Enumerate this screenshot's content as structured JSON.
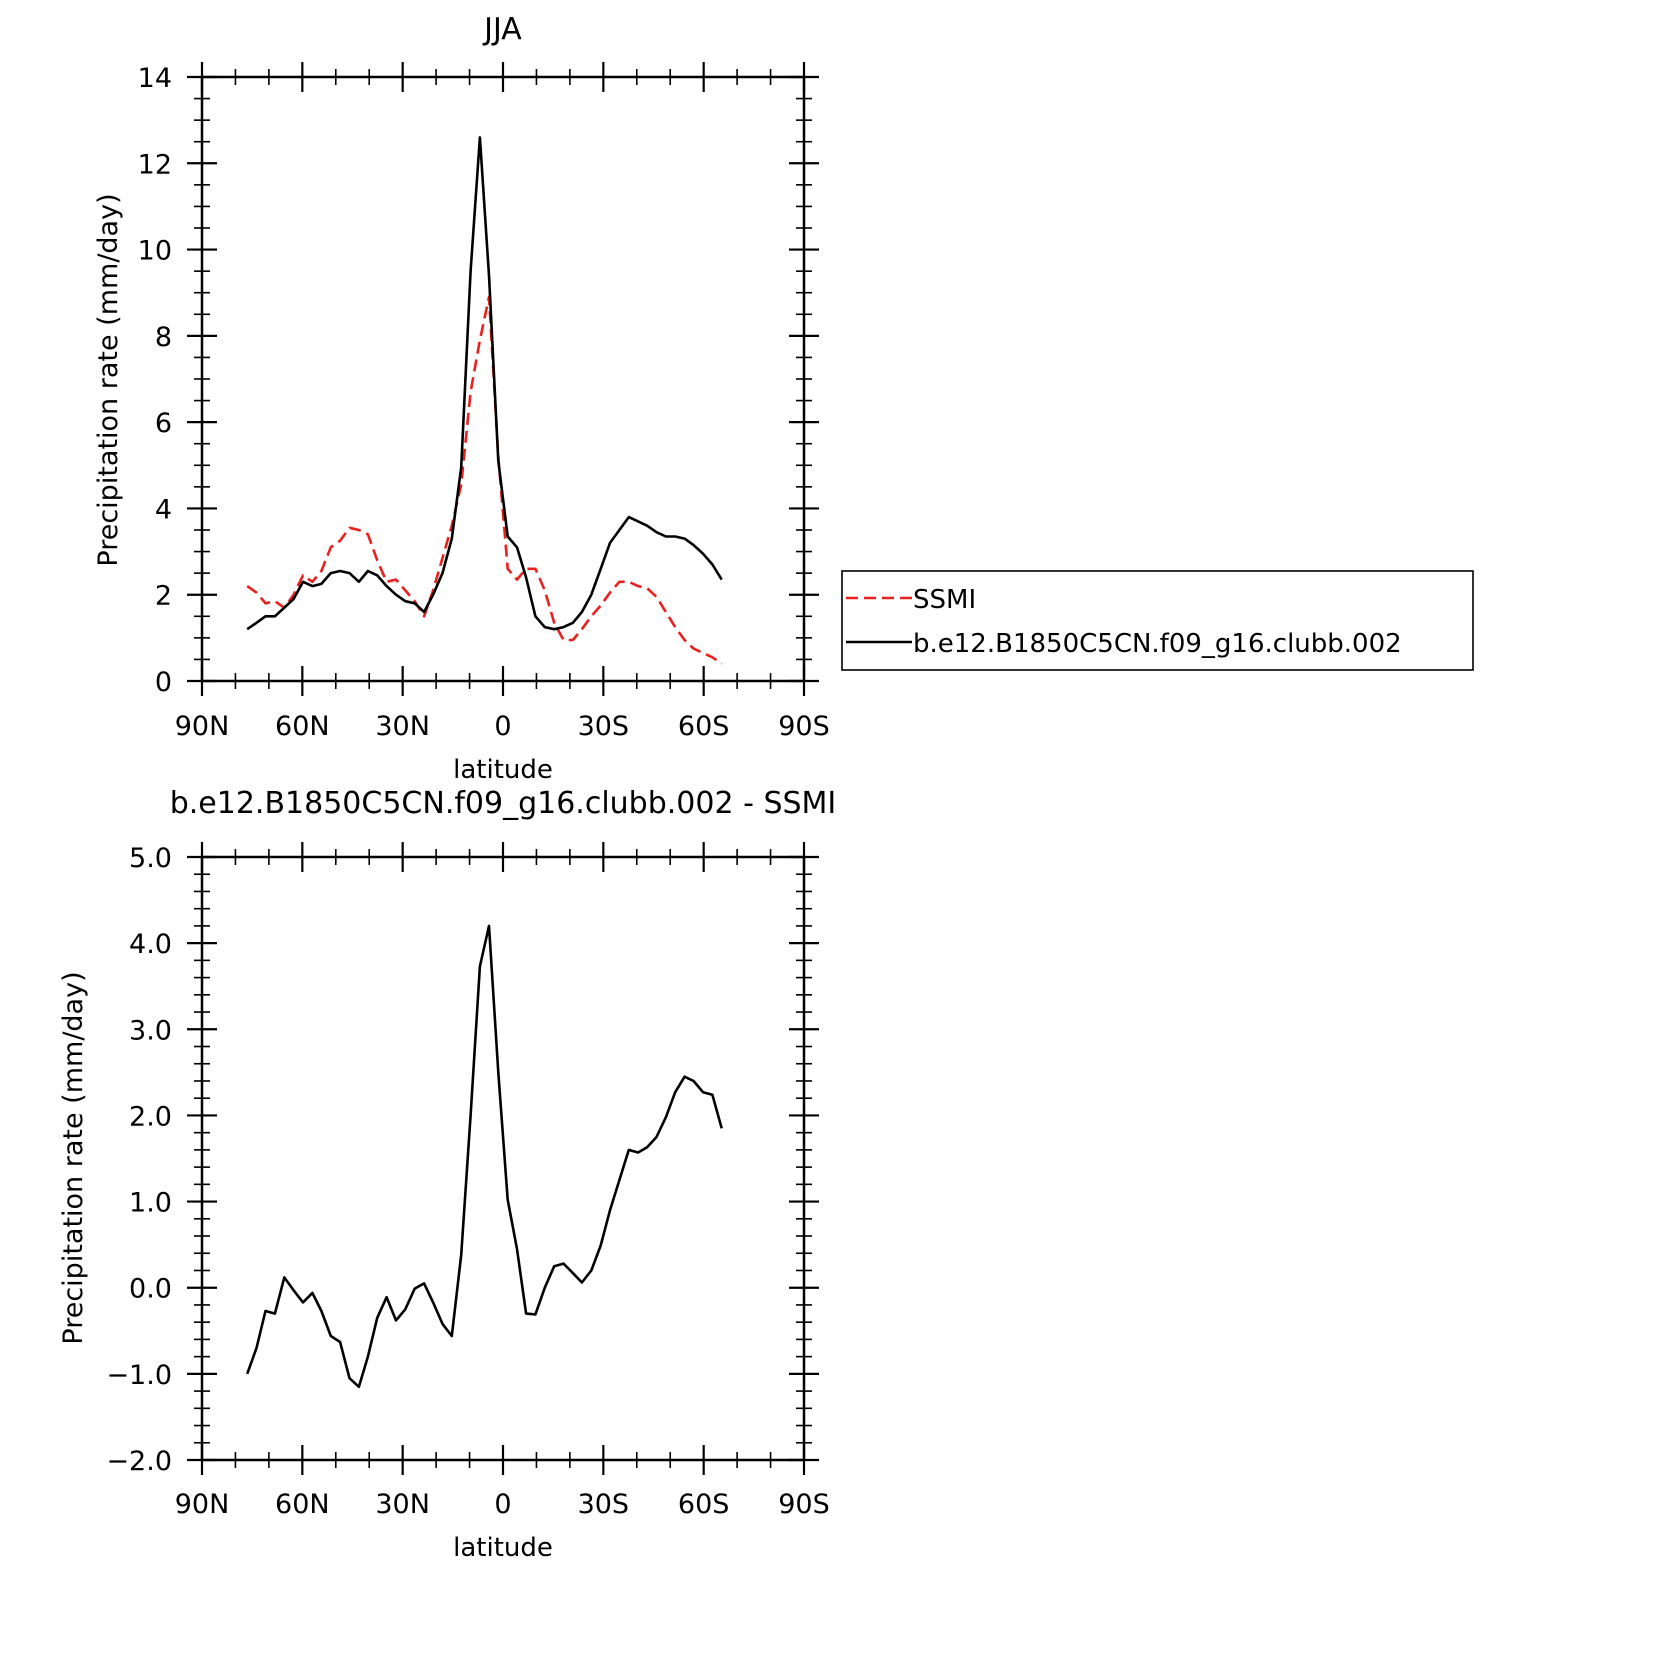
{
  "chart_data": [
    {
      "type": "line",
      "title": "JJA",
      "xlabel": "latitude",
      "ylabel": "Precipitation rate (mm/day)",
      "xlim": [
        90,
        -90
      ],
      "ylim": [
        0,
        14
      ],
      "yticks": [
        0,
        2,
        4,
        6,
        8,
        10,
        12,
        14
      ],
      "ytick_labels": [
        "0",
        "2",
        "4",
        "6",
        "8",
        "10",
        "12",
        "14"
      ],
      "xticks": [
        90,
        60,
        30,
        0,
        -30,
        -60,
        -90
      ],
      "xtick_labels": [
        "90N",
        "60N",
        "30N",
        "0",
        "30S",
        "60S",
        "90S"
      ],
      "legend_placement": "right",
      "series": [
        {
          "name": "SSMI",
          "color": "#e8201e",
          "dash": "dashed",
          "x": [
            76.5,
            73.7,
            71.0,
            68.2,
            65.4,
            62.6,
            59.8,
            57.0,
            54.3,
            51.5,
            48.7,
            45.9,
            43.1,
            40.4,
            37.6,
            34.8,
            32.0,
            29.2,
            26.4,
            23.6,
            20.9,
            18.1,
            15.3,
            12.5,
            9.7,
            6.9,
            4.2,
            1.4,
            -1.4,
            -4.2,
            -6.9,
            -9.7,
            -12.5,
            -15.3,
            -18.1,
            -20.9,
            -23.6,
            -26.4,
            -29.2,
            -32.0,
            -34.8,
            -37.6,
            -40.4,
            -43.1,
            -45.9,
            -48.7,
            -51.5,
            -54.3,
            -57.0,
            -59.8,
            -62.6,
            -65.4
          ],
          "y": [
            2.2,
            2.05,
            1.8,
            1.85,
            1.7,
            2.0,
            2.45,
            2.3,
            2.55,
            3.1,
            3.25,
            3.55,
            3.5,
            3.4,
            2.8,
            2.3,
            2.35,
            2.1,
            1.85,
            1.5,
            2.1,
            2.85,
            3.6,
            4.55,
            6.7,
            7.9,
            8.9,
            5.2,
            2.6,
            2.35,
            2.6,
            2.6,
            2.1,
            1.35,
            0.95,
            0.95,
            1.2,
            1.5,
            1.75,
            2.05,
            2.3,
            2.3,
            2.2,
            2.15,
            1.95,
            1.6,
            1.25,
            0.95,
            0.75,
            0.65,
            0.55,
            0.4
          ]
        },
        {
          "name": "b.e12.B1850C5CN.f09_g16.clubb.002",
          "color": "#000000",
          "dash": "solid",
          "x": [
            76.5,
            73.7,
            71.0,
            68.2,
            65.4,
            62.6,
            59.8,
            57.0,
            54.3,
            51.5,
            48.7,
            45.9,
            43.1,
            40.4,
            37.6,
            34.8,
            32.0,
            29.2,
            26.4,
            23.6,
            20.9,
            18.1,
            15.3,
            12.5,
            9.7,
            6.9,
            4.2,
            1.4,
            -1.4,
            -4.2,
            -6.9,
            -9.7,
            -12.5,
            -15.3,
            -18.1,
            -20.9,
            -23.6,
            -26.4,
            -29.2,
            -32.0,
            -34.8,
            -37.6,
            -40.4,
            -43.1,
            -45.9,
            -48.7,
            -51.5,
            -54.3,
            -57.0,
            -59.8,
            -62.6,
            -65.4
          ],
          "y": [
            1.2,
            1.35,
            1.5,
            1.5,
            1.7,
            1.9,
            2.3,
            2.2,
            2.25,
            2.5,
            2.55,
            2.5,
            2.3,
            2.55,
            2.45,
            2.2,
            2.0,
            1.85,
            1.8,
            1.6,
            2.0,
            2.5,
            3.3,
            4.95,
            9.5,
            12.6,
            9.4,
            5.1,
            3.35,
            3.1,
            2.4,
            1.5,
            1.25,
            1.2,
            1.25,
            1.35,
            1.6,
            2.0,
            2.6,
            3.2,
            3.5,
            3.8,
            3.7,
            3.6,
            3.45,
            3.35,
            3.35,
            3.3,
            3.15,
            2.95,
            2.7,
            2.35
          ]
        }
      ]
    },
    {
      "type": "line",
      "title": "b.e12.B1850C5CN.f09_g16.clubb.002 - SSMI",
      "xlabel": "latitude",
      "ylabel": "Precipitation rate (mm/day)",
      "xlim": [
        90,
        -90
      ],
      "ylim": [
        -2.0,
        5.0
      ],
      "yticks": [
        -2,
        -1,
        0,
        1,
        2,
        3,
        4,
        5
      ],
      "ytick_labels": [
        "−2.0",
        "−1.0",
        "0.0",
        "1.0",
        "2.0",
        "3.0",
        "4.0",
        "5.0"
      ],
      "xticks": [
        90,
        60,
        30,
        0,
        -30,
        -60,
        -90
      ],
      "xtick_labels": [
        "90N",
        "60N",
        "30N",
        "0",
        "30S",
        "60S",
        "90S"
      ],
      "series": [
        {
          "color": "#000000",
          "dash": "solid",
          "x": [
            76.5,
            73.7,
            71.0,
            68.2,
            65.4,
            62.6,
            59.8,
            57.0,
            54.3,
            51.5,
            48.7,
            45.9,
            43.1,
            40.4,
            37.6,
            34.8,
            32.0,
            29.2,
            26.4,
            23.6,
            20.9,
            18.1,
            15.3,
            12.5,
            9.7,
            6.9,
            4.2,
            1.4,
            -1.4,
            -4.2,
            -6.9,
            -9.7,
            -12.5,
            -15.3,
            -18.1,
            -20.9,
            -23.6,
            -26.4,
            -29.2,
            -32.0,
            -34.8,
            -37.6,
            -40.4,
            -43.1,
            -45.9,
            -48.7,
            -51.5,
            -54.3,
            -57.0,
            -59.8,
            -62.6,
            -65.4
          ],
          "y": [
            -1.0,
            -0.7,
            -0.27,
            -0.3,
            0.12,
            -0.03,
            -0.17,
            -0.06,
            -0.27,
            -0.56,
            -0.63,
            -1.05,
            -1.15,
            -0.8,
            -0.35,
            -0.11,
            -0.38,
            -0.25,
            -0.01,
            0.05,
            -0.17,
            -0.42,
            -0.56,
            0.38,
            2.0,
            3.73,
            4.2,
            2.5,
            1.02,
            0.45,
            -0.3,
            -0.31,
            0.0,
            0.25,
            0.28,
            0.17,
            0.06,
            0.2,
            0.49,
            0.9,
            1.25,
            1.6,
            1.57,
            1.63,
            1.75,
            1.98,
            2.27,
            2.45,
            2.4,
            2.27,
            2.24,
            1.85
          ]
        }
      ]
    }
  ]
}
